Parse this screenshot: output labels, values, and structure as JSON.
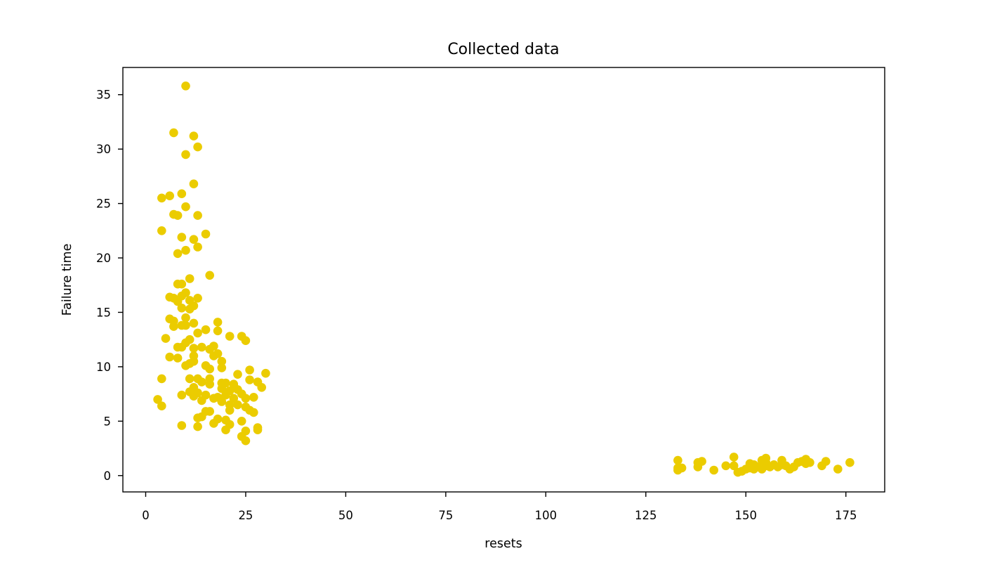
{
  "chart_data": {
    "type": "scatter",
    "title": "Collected data",
    "xlabel": "resets",
    "ylabel": "Failure time",
    "xlim": [
      -5.7,
      184.7
    ],
    "ylim": [
      -1.5,
      37.5
    ],
    "xticks": [
      0,
      25,
      50,
      75,
      100,
      125,
      150,
      175
    ],
    "yticks": [
      0,
      5,
      10,
      15,
      20,
      25,
      30,
      35
    ],
    "grid": false,
    "legend": "none",
    "point_color": "#EBCC00",
    "points": [
      [
        10,
        35.8
      ],
      [
        7,
        31.5
      ],
      [
        12,
        31.2
      ],
      [
        13,
        30.2
      ],
      [
        10,
        29.5
      ],
      [
        12,
        26.8
      ],
      [
        9,
        25.9
      ],
      [
        6,
        25.7
      ],
      [
        4,
        25.5
      ],
      [
        10,
        24.7
      ],
      [
        7,
        24.0
      ],
      [
        8,
        23.9
      ],
      [
        13,
        23.9
      ],
      [
        4,
        22.5
      ],
      [
        9,
        21.9
      ],
      [
        15,
        22.2
      ],
      [
        12,
        21.7
      ],
      [
        13,
        21.0
      ],
      [
        10,
        20.7
      ],
      [
        8,
        20.4
      ],
      [
        16,
        18.4
      ],
      [
        11,
        18.1
      ],
      [
        8,
        17.6
      ],
      [
        9,
        17.6
      ],
      [
        10,
        16.8
      ],
      [
        9,
        16.5
      ],
      [
        6,
        16.4
      ],
      [
        7,
        16.3
      ],
      [
        11,
        16.1
      ],
      [
        13,
        16.3
      ],
      [
        8,
        16.0
      ],
      [
        12,
        15.6
      ],
      [
        9,
        15.4
      ],
      [
        11,
        15.3
      ],
      [
        10,
        14.5
      ],
      [
        6,
        14.4
      ],
      [
        7,
        14.2
      ],
      [
        12,
        14.0
      ],
      [
        10,
        13.8
      ],
      [
        7,
        13.7
      ],
      [
        9,
        13.8
      ],
      [
        15,
        13.4
      ],
      [
        18,
        14.1
      ],
      [
        18,
        13.3
      ],
      [
        13,
        13.1
      ],
      [
        24,
        12.8
      ],
      [
        21,
        12.8
      ],
      [
        25,
        12.4
      ],
      [
        5,
        12.6
      ],
      [
        10,
        12.2
      ],
      [
        11,
        12.5
      ],
      [
        9,
        11.8
      ],
      [
        12,
        11.7
      ],
      [
        14,
        11.8
      ],
      [
        16,
        11.6
      ],
      [
        17,
        11.9
      ],
      [
        8,
        11.8
      ],
      [
        12,
        11.0
      ],
      [
        17,
        11.0
      ],
      [
        18,
        11.2
      ],
      [
        6,
        10.9
      ],
      [
        8,
        10.8
      ],
      [
        19,
        10.5
      ],
      [
        12,
        10.5
      ],
      [
        10,
        10.1
      ],
      [
        11,
        10.3
      ],
      [
        15,
        10.1
      ],
      [
        19,
        9.9
      ],
      [
        16,
        9.8
      ],
      [
        26,
        9.7
      ],
      [
        30,
        9.4
      ],
      [
        23,
        9.3
      ],
      [
        11,
        8.9
      ],
      [
        13,
        8.9
      ],
      [
        14,
        8.6
      ],
      [
        16,
        8.9
      ],
      [
        9,
        7.4
      ],
      [
        4,
        8.9
      ],
      [
        19,
        8.5
      ],
      [
        20,
        8.5
      ],
      [
        22,
        8.4
      ],
      [
        26,
        8.8
      ],
      [
        28,
        8.6
      ],
      [
        29,
        8.1
      ],
      [
        12,
        8.1
      ],
      [
        16,
        8.4
      ],
      [
        19,
        8.0
      ],
      [
        21,
        7.8
      ],
      [
        23,
        7.9
      ],
      [
        11,
        7.7
      ],
      [
        13,
        7.6
      ],
      [
        12,
        7.3
      ],
      [
        15,
        7.4
      ],
      [
        17,
        7.1
      ],
      [
        18,
        7.2
      ],
      [
        20,
        7.4
      ],
      [
        22,
        7.1
      ],
      [
        24,
        7.5
      ],
      [
        25,
        7.1
      ],
      [
        27,
        7.2
      ],
      [
        14,
        6.9
      ],
      [
        19,
        6.8
      ],
      [
        21,
        6.5
      ],
      [
        23,
        6.5
      ],
      [
        25,
        6.3
      ],
      [
        26,
        6.0
      ],
      [
        27,
        5.8
      ],
      [
        15,
        5.9
      ],
      [
        16,
        5.9
      ],
      [
        21,
        6.0
      ],
      [
        13,
        5.3
      ],
      [
        14,
        5.4
      ],
      [
        18,
        5.2
      ],
      [
        20,
        5.1
      ],
      [
        24,
        5.0
      ],
      [
        17,
        4.8
      ],
      [
        21,
        4.7
      ],
      [
        9,
        4.6
      ],
      [
        13,
        4.5
      ],
      [
        20,
        4.2
      ],
      [
        25,
        4.1
      ],
      [
        28,
        4.4
      ],
      [
        28,
        4.2
      ],
      [
        24,
        3.6
      ],
      [
        25,
        3.2
      ],
      [
        3,
        7.0
      ],
      [
        4,
        6.4
      ],
      [
        133,
        1.4
      ],
      [
        133,
        0.7
      ],
      [
        133,
        0.5
      ],
      [
        134,
        0.7
      ],
      [
        138,
        1.2
      ],
      [
        138,
        0.8
      ],
      [
        139,
        1.3
      ],
      [
        142,
        0.5
      ],
      [
        145,
        0.9
      ],
      [
        147,
        1.7
      ],
      [
        147,
        0.9
      ],
      [
        148,
        0.3
      ],
      [
        149,
        0.4
      ],
      [
        150,
        0.6
      ],
      [
        151,
        1.1
      ],
      [
        151,
        0.7
      ],
      [
        152,
        0.6
      ],
      [
        152,
        1.0
      ],
      [
        153,
        0.8
      ],
      [
        154,
        1.4
      ],
      [
        154,
        0.6
      ],
      [
        155,
        1.6
      ],
      [
        155,
        1.2
      ],
      [
        155,
        0.9
      ],
      [
        156,
        0.8
      ],
      [
        157,
        1.0
      ],
      [
        158,
        0.8
      ],
      [
        159,
        1.4
      ],
      [
        159,
        1.0
      ],
      [
        160,
        0.9
      ],
      [
        161,
        0.6
      ],
      [
        162,
        0.8
      ],
      [
        163,
        1.2
      ],
      [
        164,
        1.3
      ],
      [
        165,
        1.5
      ],
      [
        165,
        1.1
      ],
      [
        166,
        1.2
      ],
      [
        169,
        0.9
      ],
      [
        170,
        1.3
      ],
      [
        173,
        0.6
      ],
      [
        176,
        1.2
      ]
    ]
  }
}
